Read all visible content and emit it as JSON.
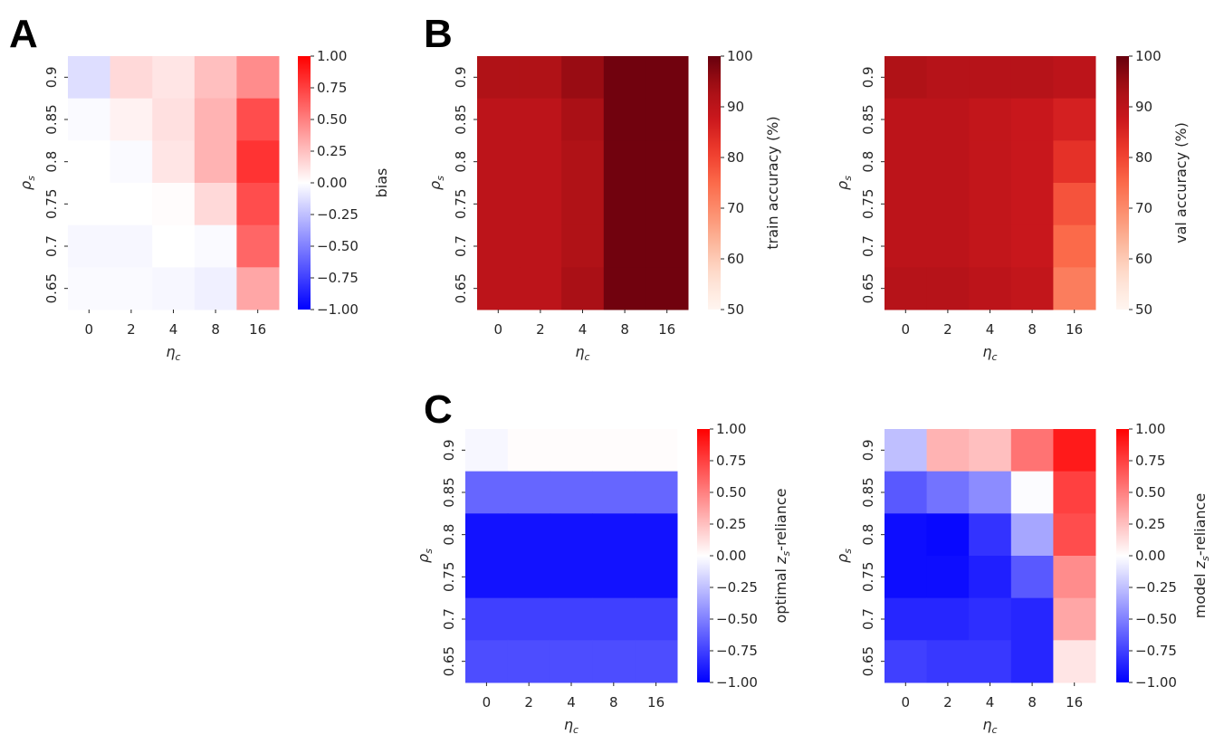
{
  "panel_letters": [
    "A",
    "B",
    "C"
  ],
  "chart_data": [
    {
      "id": "A",
      "type": "heatmap",
      "colormap": "bwr",
      "x_categories": [
        "0",
        "2",
        "4",
        "8",
        "16"
      ],
      "y_categories": [
        "0.9",
        "0.85",
        "0.8",
        "0.75",
        "0.7",
        "0.65"
      ],
      "xlabel": "η",
      "xlabel_sub": "c",
      "ylabel": "ρ",
      "ylabel_sub": "s",
      "values": [
        [
          -0.13,
          0.15,
          0.1,
          0.25,
          0.45
        ],
        [
          -0.02,
          0.05,
          0.12,
          0.3,
          0.7
        ],
        [
          0.0,
          -0.02,
          0.1,
          0.3,
          0.8
        ],
        [
          0.0,
          0.0,
          0.01,
          0.15,
          0.7
        ],
        [
          -0.03,
          -0.03,
          0.0,
          -0.02,
          0.6
        ],
        [
          -0.02,
          -0.02,
          -0.03,
          -0.06,
          0.35
        ]
      ],
      "vmin": -1.0,
      "vmax": 1.0,
      "colorbar": {
        "label": "bias",
        "label_sub": "",
        "label_suffix": "",
        "ticks": [
          "1.00",
          "0.75",
          "0.50",
          "0.25",
          "0.00",
          "−0.25",
          "−0.50",
          "−0.75",
          "−1.00"
        ],
        "tick_values": [
          1.0,
          0.75,
          0.5,
          0.25,
          0.0,
          -0.25,
          -0.5,
          -0.75,
          -1.0
        ]
      }
    },
    {
      "id": "B-train",
      "type": "heatmap",
      "colormap": "Reds",
      "x_categories": [
        "0",
        "2",
        "4",
        "8",
        "16"
      ],
      "y_categories": [
        "0.9",
        "0.85",
        "0.8",
        "0.75",
        "0.7",
        "0.65"
      ],
      "xlabel": "η",
      "xlabel_sub": "c",
      "ylabel": "ρ",
      "ylabel_sub": "s",
      "values": [
        [
          92,
          92,
          95,
          99,
          99
        ],
        [
          90,
          90,
          93,
          99,
          99
        ],
        [
          90,
          90,
          92,
          99,
          99
        ],
        [
          90,
          90,
          92,
          99,
          99
        ],
        [
          90,
          90,
          92,
          99,
          99
        ],
        [
          90,
          90,
          93,
          99,
          99
        ]
      ],
      "vmin": 50,
      "vmax": 100,
      "colorbar": {
        "label": "train accuracy (%)",
        "label_sub": "",
        "label_suffix": "",
        "ticks": [
          "100",
          "90",
          "80",
          "70",
          "60",
          "50"
        ],
        "tick_values": [
          100,
          90,
          80,
          70,
          60,
          50
        ]
      }
    },
    {
      "id": "B-val",
      "type": "heatmap",
      "colormap": "Reds",
      "x_categories": [
        "0",
        "2",
        "4",
        "8",
        "16"
      ],
      "y_categories": [
        "0.9",
        "0.85",
        "0.8",
        "0.75",
        "0.7",
        "0.65"
      ],
      "xlabel": "η",
      "xlabel_sub": "c",
      "ylabel": "ρ",
      "ylabel_sub": "s",
      "values": [
        [
          92,
          91,
          91,
          91,
          90
        ],
        [
          90,
          90,
          89,
          88,
          86
        ],
        [
          90,
          90,
          89,
          88,
          83
        ],
        [
          90,
          90,
          89,
          88,
          78
        ],
        [
          90,
          90,
          89,
          88,
          75
        ],
        [
          91,
          91,
          90,
          89,
          72
        ]
      ],
      "vmin": 50,
      "vmax": 100,
      "colorbar": {
        "label": "val accuracy (%)",
        "label_sub": "",
        "label_suffix": "",
        "ticks": [
          "100",
          "90",
          "80",
          "70",
          "60",
          "50"
        ],
        "tick_values": [
          100,
          90,
          80,
          70,
          60,
          50
        ]
      }
    },
    {
      "id": "C-optimal",
      "type": "heatmap",
      "colormap": "bwr",
      "x_categories": [
        "0",
        "2",
        "4",
        "8",
        "16"
      ],
      "y_categories": [
        "0.9",
        "0.85",
        "0.8",
        "0.75",
        "0.7",
        "0.65"
      ],
      "xlabel": "η",
      "xlabel_sub": "c",
      "ylabel": "ρ",
      "ylabel_sub": "s",
      "values": [
        [
          -0.03,
          0.01,
          0.01,
          0.01,
          0.01
        ],
        [
          -0.6,
          -0.6,
          -0.6,
          -0.6,
          -0.6
        ],
        [
          -0.93,
          -0.93,
          -0.93,
          -0.93,
          -0.93
        ],
        [
          -0.93,
          -0.93,
          -0.93,
          -0.93,
          -0.93
        ],
        [
          -0.75,
          -0.75,
          -0.75,
          -0.75,
          -0.75
        ],
        [
          -0.7,
          -0.7,
          -0.7,
          -0.7,
          -0.7
        ]
      ],
      "vmin": -1.0,
      "vmax": 1.0,
      "colorbar": {
        "label": "optimal z",
        "label_sub": "s",
        "label_suffix": "-reliance",
        "ticks": [
          "1.00",
          "0.75",
          "0.50",
          "0.25",
          "0.00",
          "−0.25",
          "−0.50",
          "−0.75",
          "−1.00"
        ],
        "tick_values": [
          1.0,
          0.75,
          0.5,
          0.25,
          0.0,
          -0.25,
          -0.5,
          -0.75,
          -1.0
        ]
      }
    },
    {
      "id": "C-model",
      "type": "heatmap",
      "colormap": "bwr",
      "x_categories": [
        "0",
        "2",
        "4",
        "8",
        "16"
      ],
      "y_categories": [
        "0.9",
        "0.85",
        "0.8",
        "0.75",
        "0.7",
        "0.65"
      ],
      "xlabel": "η",
      "xlabel_sub": "c",
      "ylabel": "ρ",
      "ylabel_sub": "s",
      "values": [
        [
          -0.25,
          0.3,
          0.25,
          0.55,
          0.9
        ],
        [
          -0.65,
          -0.55,
          -0.45,
          -0.01,
          0.75
        ],
        [
          -0.95,
          -0.97,
          -0.8,
          -0.35,
          0.7
        ],
        [
          -0.95,
          -0.95,
          -0.88,
          -0.65,
          0.45
        ],
        [
          -0.85,
          -0.85,
          -0.82,
          -0.85,
          0.35
        ],
        [
          -0.75,
          -0.78,
          -0.78,
          -0.85,
          0.1
        ]
      ],
      "vmin": -1.0,
      "vmax": 1.0,
      "colorbar": {
        "label": "model z",
        "label_sub": "s",
        "label_suffix": "-reliance",
        "ticks": [
          "1.00",
          "0.75",
          "0.50",
          "0.25",
          "0.00",
          "−0.25",
          "−0.50",
          "−0.75",
          "−1.00"
        ],
        "tick_values": [
          1.0,
          0.75,
          0.5,
          0.25,
          0.0,
          -0.25,
          -0.5,
          -0.75,
          -1.0
        ]
      }
    }
  ]
}
